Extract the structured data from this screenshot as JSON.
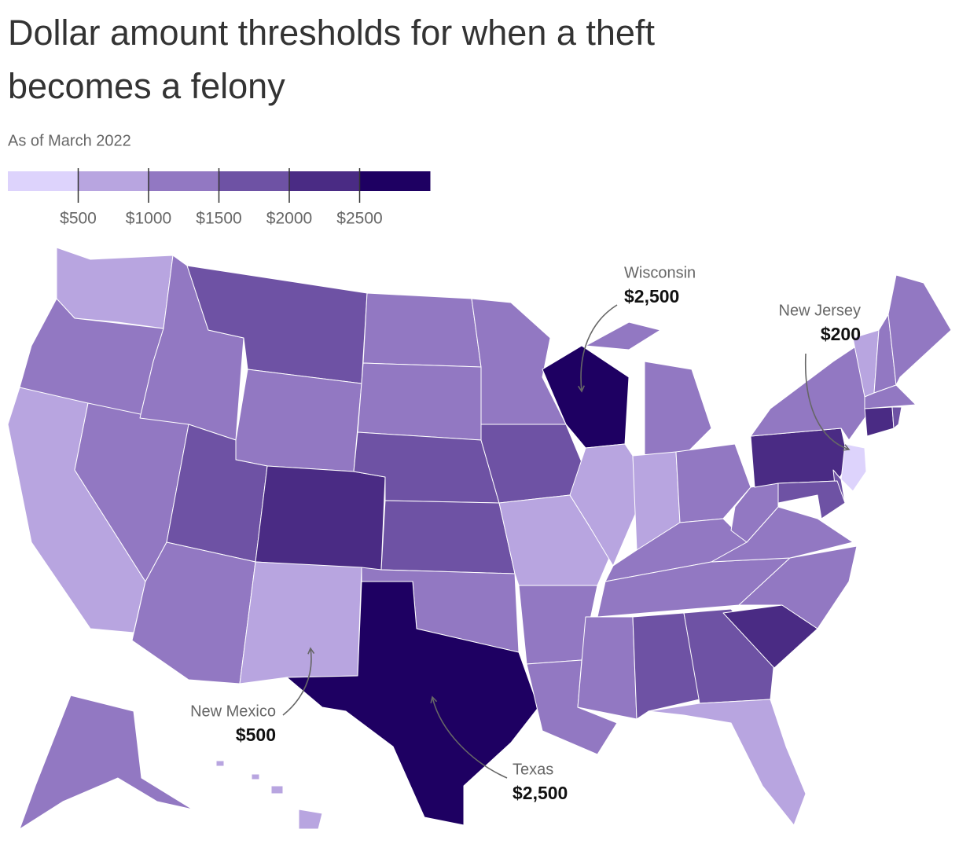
{
  "chart_data": {
    "type": "choropleth",
    "title_lines": [
      "Dollar amount thresholds for when a theft",
      "becomes a felony"
    ],
    "subtitle": "As of March 2022",
    "colors": [
      "#ddd3fc",
      "#b8a5e0",
      "#9278c2",
      "#6e52a4",
      "#4a2b84",
      "#1e0062"
    ],
    "legend_ticks": [
      {
        "value": 500,
        "label": "$500"
      },
      {
        "value": 1000,
        "label": "$1000"
      },
      {
        "value": 1500,
        "label": "$1500"
      },
      {
        "value": 2000,
        "label": "$2000"
      },
      {
        "value": 2500,
        "label": "$2500"
      }
    ],
    "values": [
      750,
      1000,
      950,
      1200,
      1000,
      1500,
      1000,
      1500,
      2000,
      1000,
      500,
      1000,
      1000,
      1500,
      1500,
      1000,
      2500,
      1000,
      1500,
      750,
      1000,
      1000,
      2500,
      500,
      1000,
      750,
      1000,
      1000,
      1000,
      1000,
      1500,
      1500,
      750,
      2000,
      1000,
      1000,
      1000,
      2000,
      1000,
      900,
      1000,
      1000,
      1200,
      2000,
      1500,
      200,
      1500,
      1500,
      1000,
      750
    ],
    "annotations": [
      {
        "name": "Wisconsin",
        "value": 2500,
        "value_label": "$2,500"
      },
      {
        "name": "New Jersey",
        "value": 200,
        "value_label": "$200"
      },
      {
        "name": "New Mexico",
        "value": 500,
        "value_label": "$500"
      },
      {
        "name": "Texas",
        "value": 2500,
        "value_label": "$2,500"
      }
    ]
  }
}
